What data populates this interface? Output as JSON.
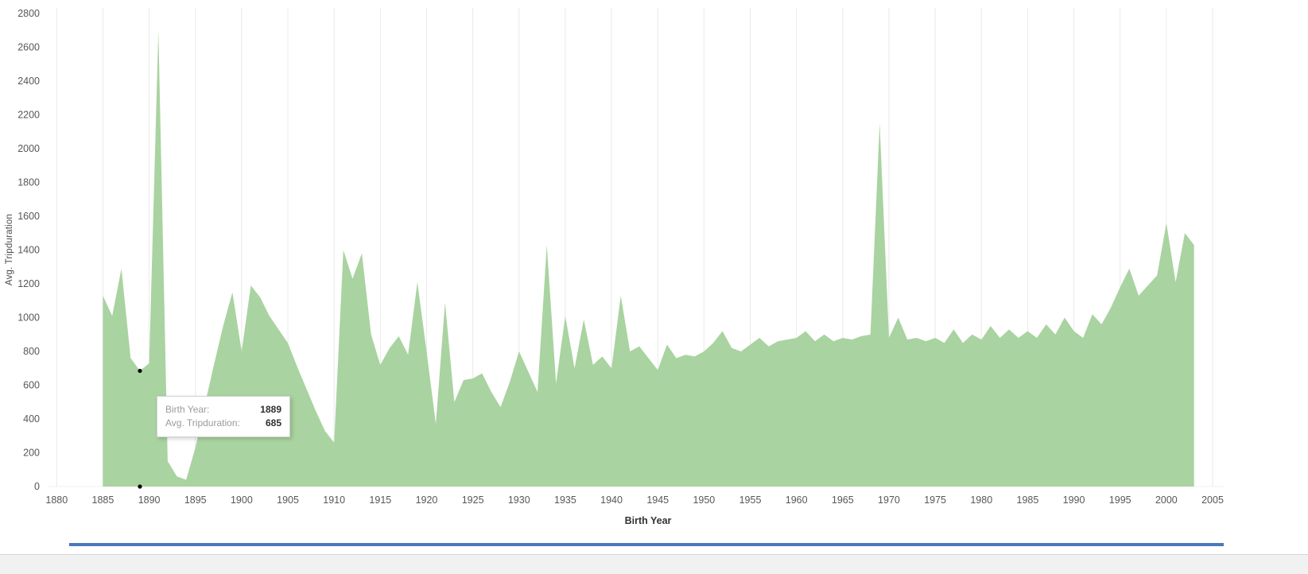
{
  "chart_data": {
    "type": "area",
    "title": "",
    "xlabel": "Birth Year",
    "ylabel": "Avg. Tripduration",
    "xlim": [
      1880,
      2005
    ],
    "ylim": [
      0,
      2800
    ],
    "x_ticks": [
      1880,
      1885,
      1890,
      1895,
      1900,
      1905,
      1910,
      1915,
      1920,
      1925,
      1930,
      1935,
      1940,
      1945,
      1950,
      1955,
      1960,
      1965,
      1970,
      1975,
      1980,
      1985,
      1990,
      1995,
      2000,
      2005
    ],
    "y_ticks": [
      0,
      200,
      400,
      600,
      800,
      1000,
      1200,
      1400,
      1600,
      1800,
      2000,
      2200,
      2400,
      2600,
      2800
    ],
    "grid": "vertical-only",
    "legend": "none",
    "fill_color": "#a9d3a0",
    "x": [
      1885,
      1886,
      1887,
      1888,
      1889,
      1890,
      1891,
      1892,
      1893,
      1894,
      1895,
      1896,
      1897,
      1898,
      1899,
      1900,
      1901,
      1902,
      1903,
      1904,
      1905,
      1906,
      1907,
      1908,
      1909,
      1910,
      1911,
      1912,
      1913,
      1914,
      1915,
      1916,
      1917,
      1918,
      1919,
      1920,
      1921,
      1922,
      1923,
      1924,
      1925,
      1926,
      1927,
      1928,
      1929,
      1930,
      1931,
      1932,
      1933,
      1934,
      1935,
      1936,
      1937,
      1938,
      1939,
      1940,
      1941,
      1942,
      1943,
      1944,
      1945,
      1946,
      1947,
      1948,
      1949,
      1950,
      1951,
      1952,
      1953,
      1954,
      1955,
      1956,
      1957,
      1958,
      1959,
      1960,
      1961,
      1962,
      1963,
      1964,
      1965,
      1966,
      1967,
      1968,
      1969,
      1970,
      1971,
      1972,
      1973,
      1974,
      1975,
      1976,
      1977,
      1978,
      1979,
      1980,
      1981,
      1982,
      1983,
      1984,
      1985,
      1986,
      1987,
      1988,
      1989,
      1990,
      1991,
      1992,
      1993,
      1994,
      1995,
      1996,
      1997,
      1998,
      1999,
      2000,
      2001,
      2002,
      2003
    ],
    "values": [
      1130,
      1010,
      1290,
      760,
      685,
      730,
      2700,
      150,
      60,
      40,
      230,
      480,
      720,
      950,
      1150,
      800,
      1190,
      1120,
      1010,
      930,
      850,
      710,
      580,
      450,
      330,
      260,
      1400,
      1230,
      1380,
      900,
      720,
      820,
      890,
      780,
      1210,
      800,
      370,
      1090,
      500,
      630,
      640,
      670,
      560,
      470,
      620,
      800,
      680,
      560,
      1430,
      610,
      1010,
      700,
      990,
      720,
      770,
      700,
      1130,
      800,
      830,
      760,
      690,
      840,
      760,
      780,
      770,
      800,
      850,
      920,
      820,
      800,
      840,
      880,
      830,
      860,
      870,
      880,
      920,
      860,
      900,
      860,
      880,
      870,
      890,
      900,
      2150,
      880,
      1000,
      870,
      880,
      860,
      880,
      850,
      930,
      850,
      900,
      870,
      950,
      880,
      930,
      880,
      920,
      880,
      960,
      900,
      1000,
      920,
      880,
      1020,
      960,
      1060,
      1180,
      1290,
      1130,
      1190,
      1250,
      1560,
      1210,
      1500,
      1430
    ],
    "markers": [
      {
        "x": 1889,
        "y": 685
      },
      {
        "x": 1889,
        "y": 0
      }
    ]
  },
  "tooltip": {
    "row1_label": "Birth Year:",
    "row1_value": "1889",
    "row2_label": "Avg. Tripduration:",
    "row2_value": "685"
  }
}
